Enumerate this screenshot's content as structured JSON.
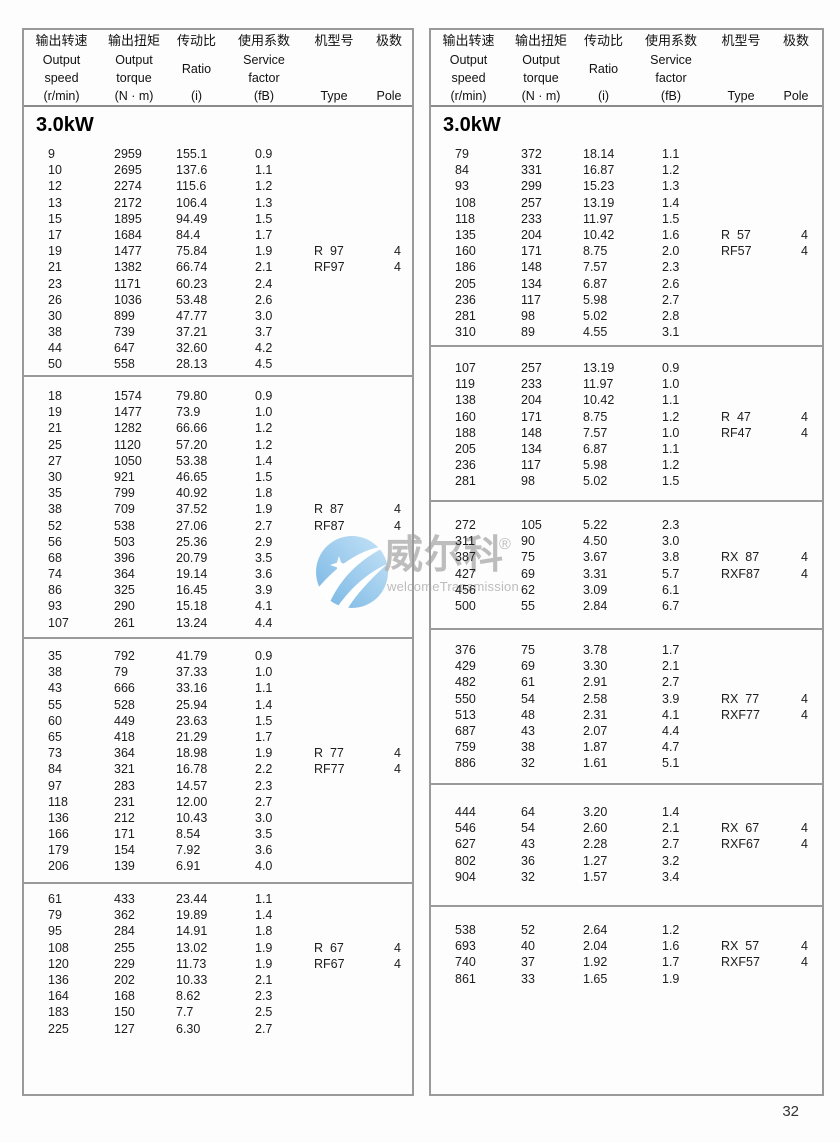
{
  "page_number": "32",
  "watermark": {
    "cn": "威尔科",
    "reg": "®",
    "en": "welcomeTransmission",
    "logo_color": "#9ecdf0"
  },
  "header": {
    "speed_zh": "输出转速",
    "speed_en1": "Output",
    "speed_en2": "speed",
    "speed_unit": "(r/min)",
    "torque_zh": "输出扭矩",
    "torque_en1": "Output",
    "torque_en2": "torque",
    "torque_unit": "(N · m)",
    "ratio_zh": "传动比",
    "ratio_en": "Ratio",
    "ratio_unit": "(i)",
    "factor_zh": "使用系数",
    "factor_en1": "Service",
    "factor_en2": "factor",
    "factor_unit": "(fB)",
    "type_zh": "机型号",
    "type_en": "Type",
    "pole_zh": "极数",
    "pole_en": "Pole"
  },
  "left_table": {
    "title": "3.0kW",
    "blocks": [
      {
        "rows": [
          [
            "9",
            "2959",
            "155.1",
            "0.9",
            "",
            ""
          ],
          [
            "10",
            "2695",
            "137.6",
            "1.1",
            "",
            ""
          ],
          [
            "12",
            "2274",
            "115.6",
            "1.2",
            "",
            ""
          ],
          [
            "13",
            "2172",
            "106.4",
            "1.3",
            "",
            ""
          ],
          [
            "15",
            "1895",
            "94.49",
            "1.5",
            "",
            ""
          ],
          [
            "17",
            "1684",
            "84.4",
            "1.7",
            "",
            ""
          ],
          [
            "19",
            "1477",
            "75.84",
            "1.9",
            "R  97",
            "4"
          ],
          [
            "21",
            "1382",
            "66.74",
            "2.1",
            "RF97",
            "4"
          ],
          [
            "23",
            "1171",
            "60.23",
            "2.4",
            "",
            ""
          ],
          [
            "26",
            "1036",
            "53.48",
            "2.6",
            "",
            ""
          ],
          [
            "30",
            "899",
            "47.77",
            "3.0",
            "",
            ""
          ],
          [
            "38",
            "739",
            "37.21",
            "3.7",
            "",
            ""
          ],
          [
            "44",
            "647",
            "32.60",
            "4.2",
            "",
            ""
          ],
          [
            "50",
            "558",
            "28.13",
            "4.5",
            "",
            ""
          ]
        ]
      },
      {
        "rows": [
          [
            "18",
            "1574",
            "79.80",
            "0.9",
            "",
            ""
          ],
          [
            "19",
            "1477",
            "73.9",
            "1.0",
            "",
            ""
          ],
          [
            "21",
            "1282",
            "66.66",
            "1.2",
            "",
            ""
          ],
          [
            "25",
            "1120",
            "57.20",
            "1.2",
            "",
            ""
          ],
          [
            "27",
            "1050",
            "53.38",
            "1.4",
            "",
            ""
          ],
          [
            "30",
            "921",
            "46.65",
            "1.5",
            "",
            ""
          ],
          [
            "35",
            "799",
            "40.92",
            "1.8",
            "",
            ""
          ],
          [
            "38",
            "709",
            "37.52",
            "1.9",
            "R  87",
            "4"
          ],
          [
            "52",
            "538",
            "27.06",
            "2.7",
            "RF87",
            "4"
          ],
          [
            "56",
            "503",
            "25.36",
            "2.9",
            "",
            ""
          ],
          [
            "68",
            "396",
            "20.79",
            "3.5",
            "",
            ""
          ],
          [
            "74",
            "364",
            "19.14",
            "3.6",
            "",
            ""
          ],
          [
            "86",
            "325",
            "16.45",
            "3.9",
            "",
            ""
          ],
          [
            "93",
            "290",
            "15.18",
            "4.1",
            "",
            ""
          ],
          [
            "107",
            "261",
            "13.24",
            "4.4",
            "",
            ""
          ]
        ]
      },
      {
        "rows": [
          [
            "35",
            "792",
            "41.79",
            "0.9",
            "",
            ""
          ],
          [
            "38",
            "79",
            "37.33",
            "1.0",
            "",
            ""
          ],
          [
            "43",
            "666",
            "33.16",
            "1.1",
            "",
            ""
          ],
          [
            "55",
            "528",
            "25.94",
            "1.4",
            "",
            ""
          ],
          [
            "60",
            "449",
            "23.63",
            "1.5",
            "",
            ""
          ],
          [
            "65",
            "418",
            "21.29",
            "1.7",
            "",
            ""
          ],
          [
            "73",
            "364",
            "18.98",
            "1.9",
            "R  77",
            "4"
          ],
          [
            "84",
            "321",
            "16.78",
            "2.2",
            "RF77",
            "4"
          ],
          [
            "97",
            "283",
            "14.57",
            "2.3",
            "",
            ""
          ],
          [
            "118",
            "231",
            "12.00",
            "2.7",
            "",
            ""
          ],
          [
            "136",
            "212",
            "10.43",
            "3.0",
            "",
            ""
          ],
          [
            "166",
            "171",
            "8.54",
            "3.5",
            "",
            ""
          ],
          [
            "179",
            "154",
            "7.92",
            "3.6",
            "",
            ""
          ],
          [
            "206",
            "139",
            "6.91",
            "4.0",
            "",
            ""
          ]
        ]
      },
      {
        "rows": [
          [
            "61",
            "433",
            "23.44",
            "1.1",
            "",
            ""
          ],
          [
            "79",
            "362",
            "19.89",
            "1.4",
            "",
            ""
          ],
          [
            "95",
            "284",
            "14.91",
            "1.8",
            "",
            ""
          ],
          [
            "108",
            "255",
            "13.02",
            "1.9",
            "R  67",
            "4"
          ],
          [
            "120",
            "229",
            "11.73",
            "1.9",
            "RF67",
            "4"
          ],
          [
            "136",
            "202",
            "10.33",
            "2.1",
            "",
            ""
          ],
          [
            "164",
            "168",
            "8.62",
            "2.3",
            "",
            ""
          ],
          [
            "183",
            "150",
            "7.7",
            "2.5",
            "",
            ""
          ],
          [
            "225",
            "127",
            "6.30",
            "2.7",
            "",
            ""
          ]
        ]
      }
    ]
  },
  "right_table": {
    "title": "3.0kW",
    "blocks": [
      {
        "rows": [
          [
            "79",
            "372",
            "18.14",
            "1.1",
            "",
            ""
          ],
          [
            "84",
            "331",
            "16.87",
            "1.2",
            "",
            ""
          ],
          [
            "93",
            "299",
            "15.23",
            "1.3",
            "",
            ""
          ],
          [
            "108",
            "257",
            "13.19",
            "1.4",
            "",
            ""
          ],
          [
            "118",
            "233",
            "11.97",
            "1.5",
            "",
            ""
          ],
          [
            "135",
            "204",
            "10.42",
            "1.6",
            "R  57",
            "4"
          ],
          [
            "160",
            "171",
            "8.75",
            "2.0",
            "RF57",
            "4"
          ],
          [
            "186",
            "148",
            "7.57",
            "2.3",
            "",
            ""
          ],
          [
            "205",
            "134",
            "6.87",
            "2.6",
            "",
            ""
          ],
          [
            "236",
            "117",
            "5.98",
            "2.7",
            "",
            ""
          ],
          [
            "281",
            "98",
            "5.02",
            "2.8",
            "",
            ""
          ],
          [
            "310",
            "89",
            "4.55",
            "3.1",
            "",
            ""
          ]
        ]
      },
      {
        "rows": [
          [
            "107",
            "257",
            "13.19",
            "0.9",
            "",
            ""
          ],
          [
            "119",
            "233",
            "11.97",
            "1.0",
            "",
            ""
          ],
          [
            "138",
            "204",
            "10.42",
            "1.1",
            "",
            ""
          ],
          [
            "160",
            "171",
            "8.75",
            "1.2",
            "R  47",
            "4"
          ],
          [
            "188",
            "148",
            "7.57",
            "1.0",
            "RF47",
            "4"
          ],
          [
            "205",
            "134",
            "6.87",
            "1.1",
            "",
            ""
          ],
          [
            "236",
            "117",
            "5.98",
            "1.2",
            "",
            ""
          ],
          [
            "281",
            "98",
            "5.02",
            "1.5",
            "",
            ""
          ]
        ]
      },
      {
        "rows": [
          [
            "272",
            "105",
            "5.22",
            "2.3",
            "",
            ""
          ],
          [
            "311",
            "90",
            "4.50",
            "3.0",
            "",
            ""
          ],
          [
            "387",
            "75",
            "3.67",
            "3.8",
            "RX  87",
            "4"
          ],
          [
            "427",
            "69",
            "3.31",
            "5.7",
            "RXF87",
            "4"
          ],
          [
            "456",
            "62",
            "3.09",
            "6.1",
            "",
            ""
          ],
          [
            "500",
            "55",
            "2.84",
            "6.7",
            "",
            ""
          ]
        ]
      },
      {
        "rows": [
          [
            "376",
            "75",
            "3.78",
            "1.7",
            "",
            ""
          ],
          [
            "429",
            "69",
            "3.30",
            "2.1",
            "",
            ""
          ],
          [
            "482",
            "61",
            "2.91",
            "2.7",
            "",
            ""
          ],
          [
            "550",
            "54",
            "2.58",
            "3.9",
            "RX  77",
            "4"
          ],
          [
            "513",
            "48",
            "2.31",
            "4.1",
            "RXF77",
            "4"
          ],
          [
            "687",
            "43",
            "2.07",
            "4.4",
            "",
            ""
          ],
          [
            "759",
            "38",
            "1.87",
            "4.7",
            "",
            ""
          ],
          [
            "886",
            "32",
            "1.61",
            "5.1",
            "",
            ""
          ]
        ]
      },
      {
        "rows": [
          [
            "444",
            "64",
            "3.20",
            "1.4",
            "",
            ""
          ],
          [
            "546",
            "54",
            "2.60",
            "2.1",
            "RX  67",
            "4"
          ],
          [
            "627",
            "43",
            "2.28",
            "2.7",
            "RXF67",
            "4"
          ],
          [
            "802",
            "36",
            "1.27",
            "3.2",
            "",
            ""
          ],
          [
            "904",
            "32",
            "1.57",
            "3.4",
            "",
            ""
          ]
        ]
      },
      {
        "rows": [
          [
            "538",
            "52",
            "2.64",
            "1.2",
            "",
            ""
          ],
          [
            "693",
            "40",
            "2.04",
            "1.6",
            "RX  57",
            "4"
          ],
          [
            "740",
            "37",
            "1.92",
            "1.7",
            "RXF57",
            "4"
          ],
          [
            "861",
            "33",
            "1.65",
            "1.9",
            "",
            ""
          ]
        ]
      }
    ]
  }
}
